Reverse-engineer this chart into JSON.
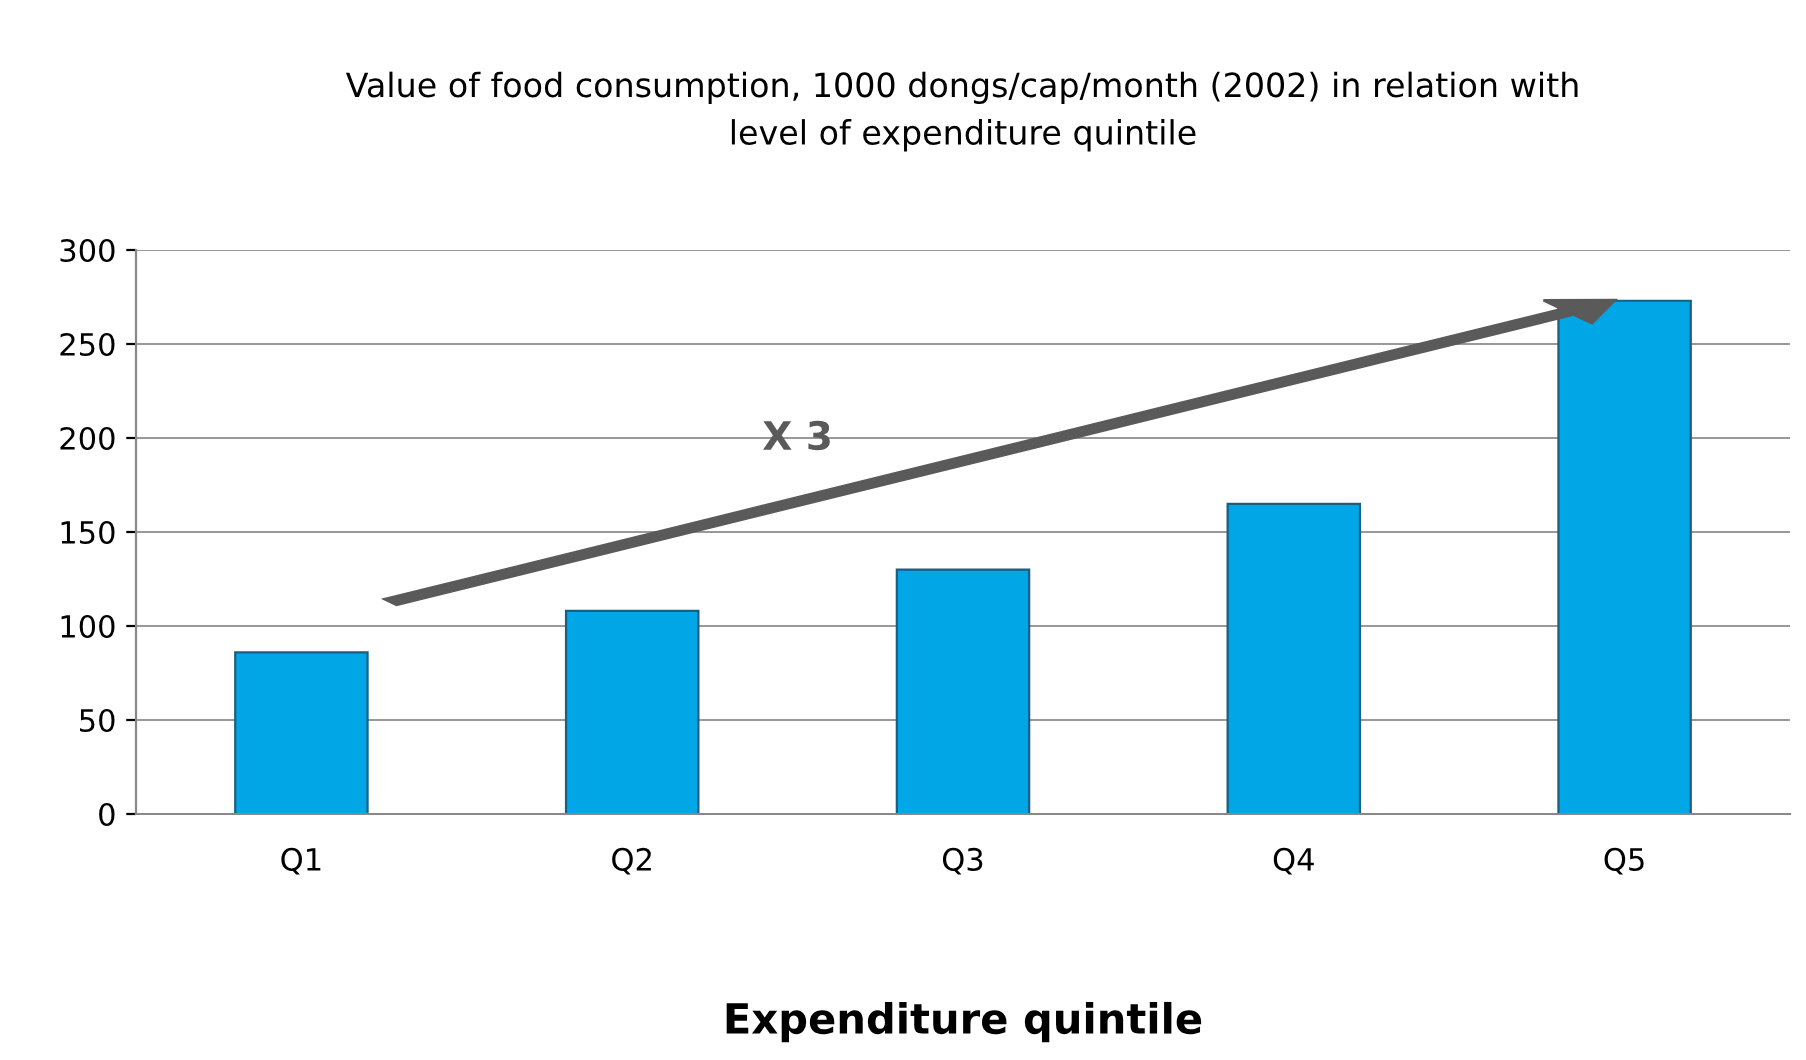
{
  "chart_data": {
    "type": "bar",
    "title": "Value of food consumption, 1000 dongs/cap/month (2002) in relation with\nlevel of expenditure quintile",
    "xlabel": "Expenditure quintile",
    "categories": [
      "Q1",
      "Q2",
      "Q3",
      "Q4",
      "Q5"
    ],
    "values": [
      86,
      108,
      130,
      165,
      273
    ],
    "color": "#00a6e6",
    "ylim": [
      0,
      300
    ],
    "yticks": [
      0,
      50,
      100,
      150,
      200,
      250,
      300
    ],
    "grid": "y",
    "annotations": [
      "X 3"
    ]
  }
}
